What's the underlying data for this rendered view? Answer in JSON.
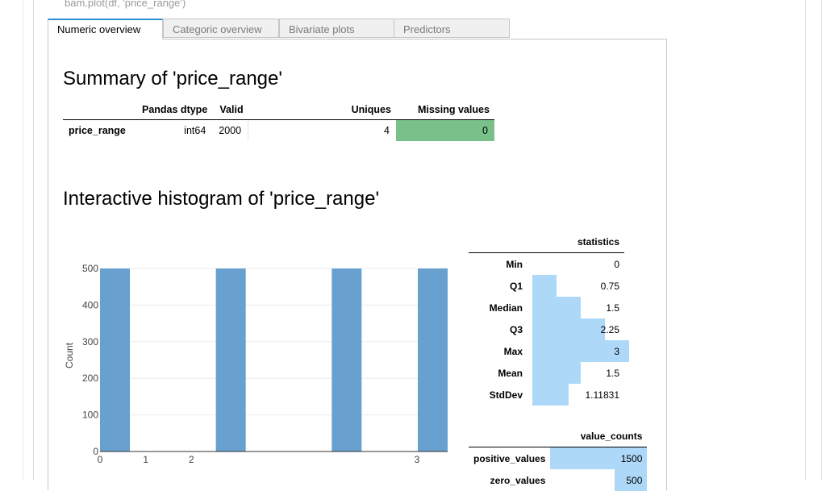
{
  "code_line": "bam.plot(df, 'price_range')",
  "tabs": [
    {
      "label": "Numeric overview",
      "active": true
    },
    {
      "label": "Categoric overview",
      "active": false
    },
    {
      "label": "Bivariate plots",
      "active": false
    },
    {
      "label": "Predictors",
      "active": false
    }
  ],
  "summary": {
    "title": "Summary of 'price_range'",
    "headers": [
      "",
      "Pandas dtype",
      "Valid",
      "",
      "Uniques",
      "Missing values"
    ],
    "row": {
      "name": "price_range",
      "dtype": "int64",
      "valid": "2000",
      "uniques": "4",
      "missing": "0"
    },
    "missing_color": "#79c08a"
  },
  "histogram": {
    "title": "Interactive histogram of 'price_range'"
  },
  "chart_data": {
    "type": "bar",
    "ylabel": "Count",
    "xlabel": "",
    "x": [
      0,
      1,
      2,
      3
    ],
    "values": [
      500,
      500,
      500,
      500
    ],
    "xlim": [
      0,
      3
    ],
    "ylim": [
      0,
      500
    ],
    "yticks": [
      0,
      100,
      200,
      300,
      400,
      500
    ],
    "xticks": [
      0,
      1,
      2,
      3
    ],
    "bar_color": "#68a0cf"
  },
  "statistics": {
    "header": "statistics",
    "rows": [
      {
        "label": "Min",
        "value": "0",
        "num": 0
      },
      {
        "label": "Q1",
        "value": "0.75",
        "num": 0.75
      },
      {
        "label": "Median",
        "value": "1.5",
        "num": 1.5
      },
      {
        "label": "Q3",
        "value": "2.25",
        "num": 2.25
      },
      {
        "label": "Max",
        "value": "3",
        "num": 3
      },
      {
        "label": "Mean",
        "value": "1.5",
        "num": 1.5
      },
      {
        "label": "StdDev",
        "value": "1.11831",
        "num": 1.11831
      }
    ],
    "bar_color": "#add8f7"
  },
  "value_counts": {
    "header": "value_counts",
    "rows": [
      {
        "label": "positive_values",
        "value": "1500",
        "num": 1500
      },
      {
        "label": "zero_values",
        "value": "500",
        "num": 500
      }
    ]
  }
}
